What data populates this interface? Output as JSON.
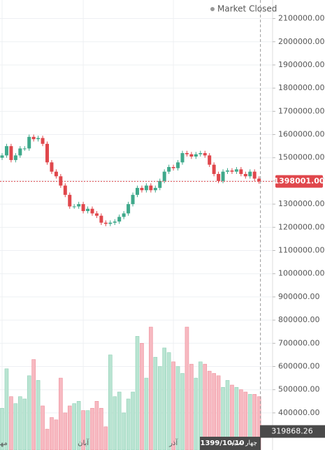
{
  "chart_data": {
    "type": "candlestick",
    "status": "Market Closed",
    "open": [
      1500000,
      1510000,
      1550000,
      1490000,
      1510000,
      1540000,
      1540000,
      1590000,
      1580000,
      1585000,
      1560000,
      1480000,
      1440000,
      1420000,
      1380000,
      1340000,
      1290000,
      1290000,
      1300000,
      1270000,
      1280000,
      1260000,
      1250000,
      1220000,
      1215000,
      1220000,
      1225000,
      1245000,
      1260000,
      1300000,
      1340000,
      1370000,
      1360000,
      1380000,
      1360000,
      1370000,
      1400000,
      1440000,
      1460000,
      1455000,
      1480000,
      1520000,
      1515000,
      1505000,
      1515000,
      1520000,
      1510000,
      1470000,
      1430000,
      1400000,
      1440000,
      1445000,
      1440000,
      1450000,
      1430000,
      1420000,
      1440000,
      1410000
    ],
    "high": [
      1520000,
      1560000,
      1560000,
      1520000,
      1550000,
      1550000,
      1600000,
      1600000,
      1595000,
      1595000,
      1570000,
      1490000,
      1450000,
      1430000,
      1390000,
      1350000,
      1300000,
      1310000,
      1310000,
      1290000,
      1290000,
      1270000,
      1260000,
      1230000,
      1230000,
      1235000,
      1255000,
      1270000,
      1310000,
      1350000,
      1380000,
      1380000,
      1390000,
      1390000,
      1380000,
      1410000,
      1450000,
      1470000,
      1470000,
      1490000,
      1530000,
      1530000,
      1525000,
      1525000,
      1530000,
      1530000,
      1520000,
      1480000,
      1440000,
      1450000,
      1455000,
      1455000,
      1460000,
      1460000,
      1440000,
      1450000,
      1450000,
      1420000
    ],
    "low": [
      1490000,
      1500000,
      1480000,
      1480000,
      1500000,
      1530000,
      1530000,
      1570000,
      1570000,
      1550000,
      1470000,
      1430000,
      1410000,
      1370000,
      1330000,
      1280000,
      1280000,
      1280000,
      1260000,
      1260000,
      1250000,
      1240000,
      1210000,
      1205000,
      1205000,
      1210000,
      1215000,
      1235000,
      1250000,
      1290000,
      1330000,
      1350000,
      1350000,
      1350000,
      1350000,
      1360000,
      1390000,
      1430000,
      1445000,
      1445000,
      1470000,
      1505000,
      1495000,
      1495000,
      1505000,
      1500000,
      1460000,
      1420000,
      1390000,
      1390000,
      1430000,
      1430000,
      1430000,
      1420000,
      1410000,
      1410000,
      1400000,
      1388001
    ],
    "close": [
      1510000,
      1550000,
      1490000,
      1510000,
      1540000,
      1540000,
      1590000,
      1580000,
      1585000,
      1560000,
      1480000,
      1440000,
      1420000,
      1380000,
      1340000,
      1290000,
      1290000,
      1300000,
      1270000,
      1280000,
      1260000,
      1250000,
      1220000,
      1215000,
      1220000,
      1225000,
      1245000,
      1260000,
      1300000,
      1340000,
      1370000,
      1360000,
      1380000,
      1360000,
      1370000,
      1400000,
      1440000,
      1460000,
      1455000,
      1480000,
      1520000,
      1515000,
      1505000,
      1515000,
      1520000,
      1510000,
      1470000,
      1430000,
      1400000,
      1440000,
      1445000,
      1440000,
      1450000,
      1430000,
      1420000,
      1440000,
      1410000,
      1398001
    ],
    "volume": [
      420000,
      590000,
      470000,
      440000,
      470000,
      460000,
      560000,
      630000,
      540000,
      430000,
      330000,
      380000,
      370000,
      550000,
      400000,
      430000,
      440000,
      450000,
      410000,
      410000,
      420000,
      450000,
      420000,
      340000,
      650000,
      470000,
      490000,
      400000,
      460000,
      490000,
      730000,
      700000,
      550000,
      770000,
      640000,
      600000,
      680000,
      660000,
      620000,
      600000,
      570000,
      770000,
      610000,
      550000,
      620000,
      610000,
      580000,
      570000,
      560000,
      510000,
      540000,
      520000,
      510000,
      500000,
      490000,
      480000,
      480000,
      470000
    ],
    "up_color": "#3fa98b",
    "down_color": "#e0474c",
    "volume_up_color": "#b9e4d2",
    "volume_down_color": "#f7b9c1",
    "ylim": [
      240000,
      2180000
    ],
    "yticks": [
      {
        "value": 2100000,
        "label": "2100000.00"
      },
      {
        "value": 2000000,
        "label": "2000000.00"
      },
      {
        "value": 1900000,
        "label": "1900000.00"
      },
      {
        "value": 1800000,
        "label": "1800000.00"
      },
      {
        "value": 1700000,
        "label": "1700000.00"
      },
      {
        "value": 1600000,
        "label": "1600000.00"
      },
      {
        "value": 1500000,
        "label": "1500000.00"
      },
      {
        "value": 1400000,
        "label": "1400000.00"
      },
      {
        "value": 1300000,
        "label": "1300000.00"
      },
      {
        "value": 1200000,
        "label": "1200000.00"
      },
      {
        "value": 1100000,
        "label": "1100000.00"
      },
      {
        "value": 1000000,
        "label": "1000000.00"
      },
      {
        "value": 900000,
        "label": "900000.00"
      },
      {
        "value": 800000,
        "label": "800000.00"
      },
      {
        "value": 700000,
        "label": "700000.00"
      },
      {
        "value": 600000,
        "label": "600000.00"
      },
      {
        "value": 500000,
        "label": "500000.00"
      },
      {
        "value": 400000,
        "label": "400000.00"
      }
    ],
    "xticks": [
      {
        "value": 0,
        "label": "مهر"
      },
      {
        "value": 18,
        "label": "آبان"
      },
      {
        "value": 38,
        "label": "آذر"
      }
    ],
    "last_price": {
      "value": 1398001,
      "label": "1398001.00"
    },
    "crosshair_value": {
      "value": 319868.26,
      "label": "319868.26"
    },
    "crosshair_date": "1399/10/10",
    "crosshair_weekday": "چهار شنبه",
    "grid": true
  }
}
